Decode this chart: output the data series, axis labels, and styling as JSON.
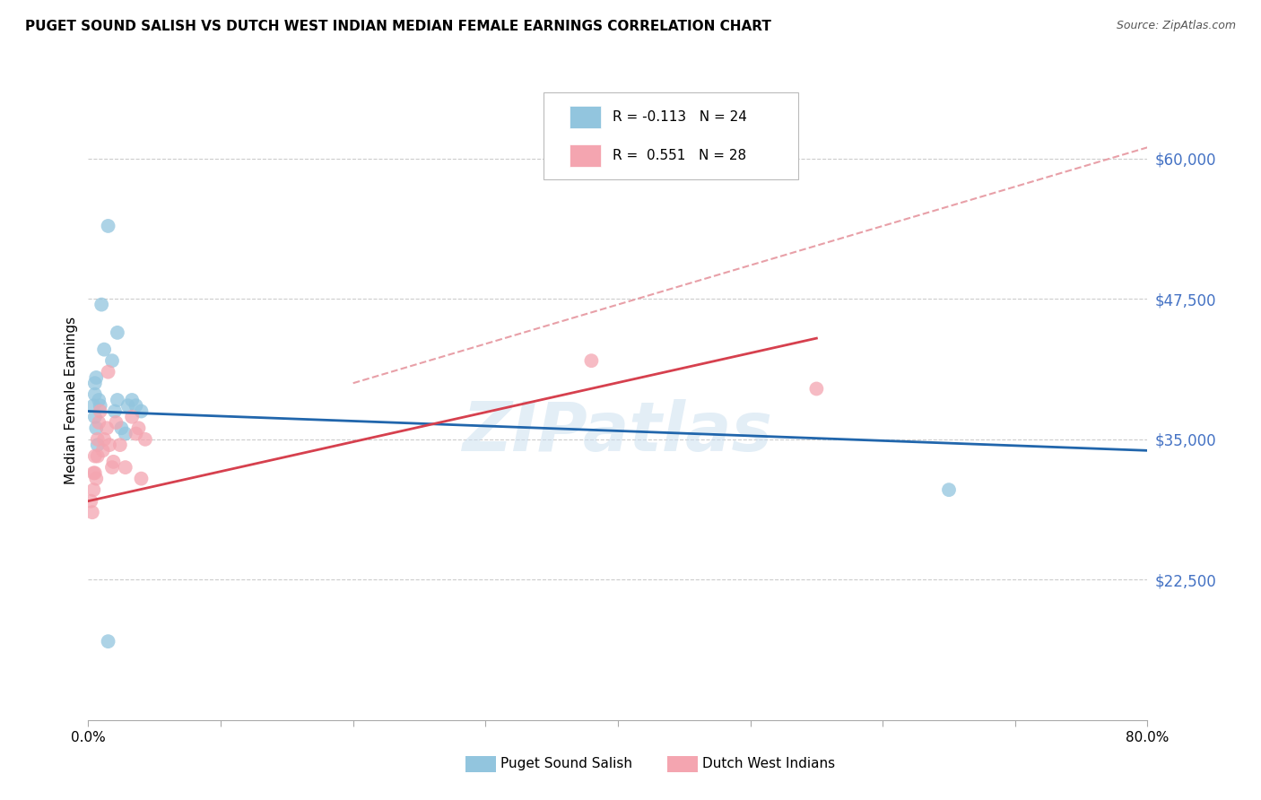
{
  "title": "PUGET SOUND SALISH VS DUTCH WEST INDIAN MEDIAN FEMALE EARNINGS CORRELATION CHART",
  "source": "Source: ZipAtlas.com",
  "ylabel": "Median Female Earnings",
  "blue_label": "Puget Sound Salish",
  "pink_label": "Dutch West Indians",
  "blue_r": "-0.113",
  "blue_n": "24",
  "pink_r": "0.551",
  "pink_n": "28",
  "blue_color": "#92c5de",
  "pink_color": "#f4a5b0",
  "blue_line_color": "#2166ac",
  "pink_line_color": "#d6404e",
  "dashed_line_color": "#e8a0a8",
  "watermark": "ZIPatlas",
  "ytick_labels": [
    "$22,500",
    "$35,000",
    "$47,500",
    "$60,000"
  ],
  "ytick_values": [
    22500,
    35000,
    47500,
    60000
  ],
  "ymin": 10000,
  "ymax": 67000,
  "xmin": 0.0,
  "xmax": 0.8,
  "blue_points_x": [
    0.008,
    0.015,
    0.004,
    0.005,
    0.005,
    0.006,
    0.005,
    0.006,
    0.007,
    0.009,
    0.012,
    0.018,
    0.02,
    0.022,
    0.025,
    0.022,
    0.03,
    0.028,
    0.033,
    0.036,
    0.04,
    0.01,
    0.015,
    0.65
  ],
  "blue_points_y": [
    38500,
    54000,
    38000,
    39000,
    40000,
    40500,
    37000,
    36000,
    34500,
    38000,
    43000,
    42000,
    37500,
    38500,
    36000,
    44500,
    38000,
    35500,
    38500,
    38000,
    37500,
    47000,
    17000,
    30500
  ],
  "pink_points_x": [
    0.002,
    0.003,
    0.004,
    0.004,
    0.005,
    0.005,
    0.006,
    0.007,
    0.007,
    0.008,
    0.009,
    0.011,
    0.012,
    0.014,
    0.015,
    0.016,
    0.018,
    0.019,
    0.021,
    0.024,
    0.028,
    0.033,
    0.036,
    0.038,
    0.04,
    0.043,
    0.38,
    0.55
  ],
  "pink_points_y": [
    29500,
    28500,
    32000,
    30500,
    33500,
    32000,
    31500,
    35000,
    33500,
    36500,
    37500,
    34000,
    35000,
    36000,
    41000,
    34500,
    32500,
    33000,
    36500,
    34500,
    32500,
    37000,
    35500,
    36000,
    31500,
    35000,
    42000,
    39500
  ],
  "blue_line_x": [
    0.0,
    0.8
  ],
  "blue_line_y": [
    37500,
    34000
  ],
  "pink_line_x": [
    0.0,
    0.55
  ],
  "pink_line_y": [
    29500,
    44000
  ],
  "dashed_line_x": [
    0.2,
    0.8
  ],
  "dashed_line_y": [
    40000,
    61000
  ],
  "xtick_positions": [
    0.0,
    0.1,
    0.2,
    0.3,
    0.4,
    0.5,
    0.6,
    0.7,
    0.8
  ],
  "xtick_labels": [
    "0.0%",
    "",
    "",
    "",
    "",
    "",
    "",
    "",
    "80.0%"
  ]
}
